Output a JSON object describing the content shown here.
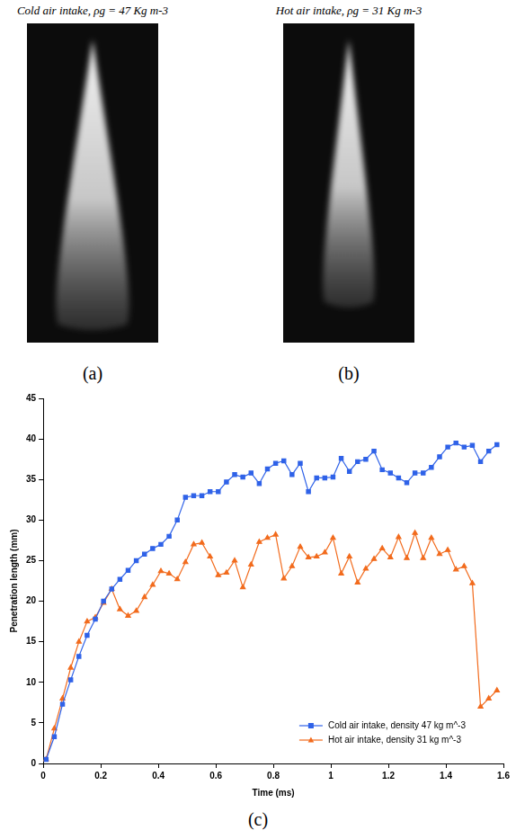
{
  "panels": [
    {
      "label": "(a)",
      "title": "Cold air intake, ρg = 47 Kg m-3"
    },
    {
      "label": "(b)",
      "title": "Hot air intake, ρg = 31 Kg m-3"
    }
  ],
  "chart_data": {
    "panel": "(c)",
    "type": "line",
    "x_label": "Time (ms)",
    "y_label": "Penetration length (mm)",
    "x": [
      0.01,
      0.0385,
      0.067,
      0.0955,
      0.124,
      0.1525,
      0.181,
      0.2095,
      0.238,
      0.2665,
      0.295,
      0.3235,
      0.352,
      0.3805,
      0.409,
      0.4375,
      0.466,
      0.4945,
      0.523,
      0.5515,
      0.58,
      0.6085,
      0.637,
      0.6655,
      0.694,
      0.7225,
      0.751,
      0.7795,
      0.808,
      0.8365,
      0.865,
      0.8935,
      0.922,
      0.9505,
      0.979,
      1.0075,
      1.036,
      1.0645,
      1.093,
      1.1215,
      1.15,
      1.1785,
      1.207,
      1.2355,
      1.264,
      1.2925,
      1.321,
      1.3495,
      1.378,
      1.4065,
      1.435,
      1.4635,
      1.492,
      1.5205,
      1.549,
      1.5775
    ],
    "series": [
      {
        "name": "Cold air intake, density 47 kg m^-3",
        "color": "#2f62e8",
        "marker": "square",
        "values": [
          0.5,
          3.3,
          7.3,
          10.3,
          13.2,
          15.8,
          17.8,
          20,
          21.5,
          22.7,
          23.8,
          25,
          25.8,
          26.5,
          27,
          28,
          30,
          32.8,
          33,
          33,
          33.5,
          33.5,
          34.7,
          35.6,
          35.3,
          35.8,
          34.5,
          36.3,
          37,
          37.3,
          35.6,
          37,
          33.5,
          35.2,
          35.2,
          35.3,
          37.6,
          36,
          37.2,
          37.5,
          38.5,
          36.2,
          35.8,
          35.2,
          34.6,
          35.8,
          35.8,
          36.5,
          37.8,
          39,
          39.5,
          39,
          39.2,
          37.2,
          38.5,
          39.3
        ]
      },
      {
        "name": "Hot air intake, density 31 kg m^-3",
        "color": "#f26b1d",
        "marker": "triangle",
        "values": [
          0.5,
          4.3,
          8,
          11.8,
          15,
          17.5,
          18,
          19.8,
          21.5,
          19,
          18.2,
          18.8,
          20.5,
          22,
          23.7,
          23.4,
          22.7,
          24.8,
          27,
          27.2,
          25.5,
          23.2,
          23.5,
          25,
          21.7,
          24.5,
          27.3,
          27.8,
          28.2,
          22.8,
          24.3,
          26.7,
          25.4,
          25.5,
          26,
          27.8,
          23.4,
          25.5,
          22.3,
          24,
          25.2,
          26.5,
          25.4,
          27.9,
          25.3,
          28.4,
          25.3,
          27.8,
          25.8,
          26.3,
          23.9,
          24.3,
          22.2,
          7,
          8,
          9
        ]
      }
    ],
    "xlim": [
      0,
      1.6
    ],
    "xticks": [
      0,
      0.2,
      0.4,
      0.6,
      0.8,
      1,
      1.2,
      1.4,
      1.6
    ],
    "ylim": [
      0,
      45
    ],
    "yticks": [
      0,
      5,
      10,
      15,
      20,
      25,
      30,
      35,
      40,
      45
    ],
    "grid": false,
    "legend": "lower right"
  }
}
